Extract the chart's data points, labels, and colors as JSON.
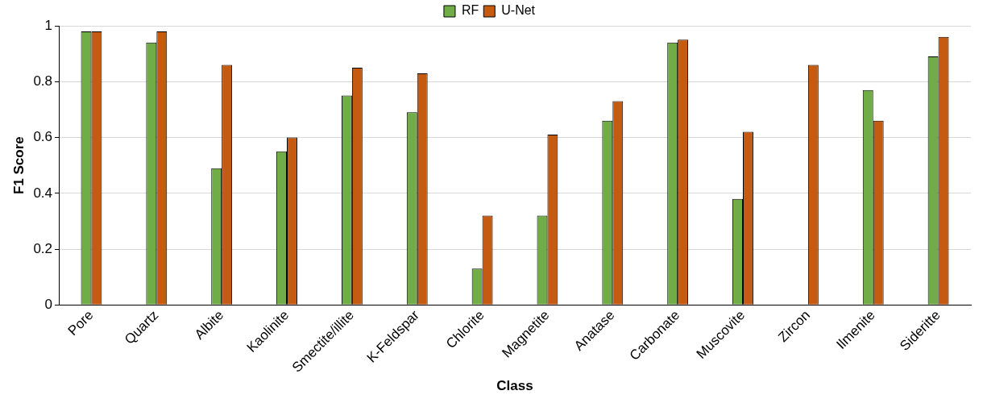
{
  "chart_data": {
    "type": "bar",
    "xlabel": "Class",
    "ylabel": "F1 Score",
    "categories": [
      "Pore",
      "Quartz",
      "Albite",
      "Kaolinite",
      "Smectite/illite",
      "K-Feldspar",
      "Chlorite",
      "Magnetite",
      "Anatase",
      "Carbonate",
      "Muscovite",
      "Zircon",
      "Ilmenite",
      "Sideritte"
    ],
    "series": [
      {
        "name": "RF",
        "color": "#70ad47",
        "values": [
          0.98,
          0.94,
          0.49,
          0.55,
          0.75,
          0.69,
          0.13,
          0.32,
          0.66,
          0.94,
          0.38,
          0,
          0.77,
          0.89
        ]
      },
      {
        "name": "U-Net",
        "color": "#c55a11",
        "values": [
          0.98,
          0.98,
          0.86,
          0.6,
          0.85,
          0.83,
          0.32,
          0.61,
          0.73,
          0.95,
          0.62,
          0.86,
          0.66,
          0.96
        ]
      }
    ],
    "ylim": [
      0,
      1
    ],
    "yticks": [
      0,
      0.2,
      0.4,
      0.6,
      0.8,
      1
    ],
    "grid": "y",
    "legend": "top"
  }
}
